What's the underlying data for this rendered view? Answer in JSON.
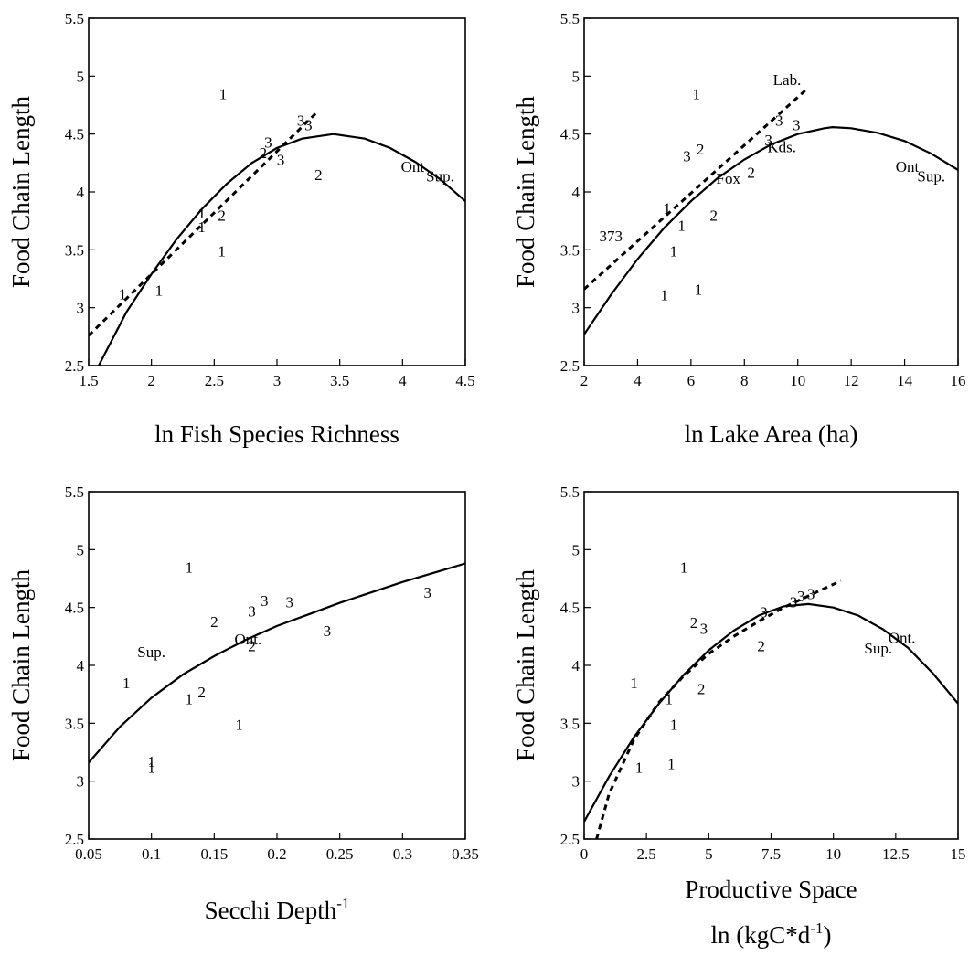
{
  "chart_data": [
    {
      "type": "scatter",
      "xlabel": "ln Fish Species Richness",
      "ylabel": "Food Chain Length",
      "xlim": [
        1.5,
        4.5
      ],
      "ylim": [
        2.5,
        5.5
      ],
      "xticks": [
        "1.5",
        "2",
        "2.5",
        "3",
        "3.5",
        "4",
        "4.5"
      ],
      "yticks": [
        "2.5",
        "3",
        "3.5",
        "4",
        "4.5",
        "5",
        "5.5"
      ],
      "points": [
        {
          "x": 1.77,
          "y": 3.12,
          "label": "1"
        },
        {
          "x": 2.06,
          "y": 3.15,
          "label": "1"
        },
        {
          "x": 2.4,
          "y": 3.82,
          "label": "1"
        },
        {
          "x": 2.4,
          "y": 3.7,
          "label": "1"
        },
        {
          "x": 2.56,
          "y": 3.8,
          "label": "2"
        },
        {
          "x": 2.56,
          "y": 3.49,
          "label": "1"
        },
        {
          "x": 2.57,
          "y": 4.85,
          "label": "1"
        },
        {
          "x": 2.89,
          "y": 4.34,
          "label": "2"
        },
        {
          "x": 2.93,
          "y": 4.43,
          "label": "3"
        },
        {
          "x": 3.03,
          "y": 4.28,
          "label": "3"
        },
        {
          "x": 3.19,
          "y": 4.62,
          "label": "3"
        },
        {
          "x": 3.25,
          "y": 4.58,
          "label": "3"
        },
        {
          "x": 3.33,
          "y": 4.15,
          "label": "2"
        }
      ],
      "lake_labels": [
        {
          "x": 4.08,
          "y": 4.22,
          "text": "Ont"
        },
        {
          "x": 4.3,
          "y": 4.14,
          "text": "Sup."
        }
      ],
      "series": [
        {
          "style": "curve",
          "x": [
            1.58,
            1.8,
            2.0,
            2.2,
            2.4,
            2.6,
            2.8,
            3.0,
            3.2,
            3.45,
            3.7,
            3.9,
            4.1,
            4.3,
            4.5
          ],
          "y": [
            2.5,
            2.96,
            3.29,
            3.59,
            3.85,
            4.07,
            4.25,
            4.38,
            4.46,
            4.5,
            4.46,
            4.38,
            4.26,
            4.11,
            3.92
          ]
        },
        {
          "style": "linear",
          "x": [
            1.5,
            3.33
          ],
          "y": [
            2.76,
            4.7
          ]
        }
      ]
    },
    {
      "type": "scatter",
      "xlabel": "ln Lake Area (ha)",
      "ylabel": "Food Chain Length",
      "xlim": [
        2,
        16
      ],
      "ylim": [
        2.5,
        5.5
      ],
      "xticks": [
        "2",
        "4",
        "6",
        "8",
        "10",
        "12",
        "14",
        "16"
      ],
      "yticks": [
        "2.5",
        "3",
        "3.5",
        "4",
        "4.5",
        "5",
        "5.5"
      ],
      "points": [
        {
          "x": 5.0,
          "y": 3.11,
          "label": "1"
        },
        {
          "x": 6.28,
          "y": 3.16,
          "label": "1"
        },
        {
          "x": 5.35,
          "y": 3.49,
          "label": "1"
        },
        {
          "x": 5.65,
          "y": 3.71,
          "label": "1"
        },
        {
          "x": 5.1,
          "y": 3.86,
          "label": "1"
        },
        {
          "x": 6.85,
          "y": 3.8,
          "label": "2"
        },
        {
          "x": 5.85,
          "y": 4.31,
          "label": "3"
        },
        {
          "x": 6.35,
          "y": 4.37,
          "label": "2"
        },
        {
          "x": 6.2,
          "y": 4.85,
          "label": "1"
        },
        {
          "x": 8.25,
          "y": 4.17,
          "label": "2"
        },
        {
          "x": 8.9,
          "y": 4.45,
          "label": "3"
        },
        {
          "x": 9.3,
          "y": 4.62,
          "label": "3"
        },
        {
          "x": 9.95,
          "y": 4.58,
          "label": "3"
        }
      ],
      "lake_labels": [
        {
          "x": 3.0,
          "y": 3.62,
          "text": "373"
        },
        {
          "x": 7.4,
          "y": 4.12,
          "text": "Fox"
        },
        {
          "x": 9.4,
          "y": 4.39,
          "text": "Kds."
        },
        {
          "x": 9.6,
          "y": 4.97,
          "text": "Lab."
        },
        {
          "x": 14.1,
          "y": 4.22,
          "text": "Ont"
        },
        {
          "x": 15.0,
          "y": 4.14,
          "text": "Sup."
        }
      ],
      "series": [
        {
          "style": "curve",
          "x": [
            2,
            3,
            4,
            5,
            6,
            7,
            8,
            9,
            10,
            11,
            11.3,
            12,
            13,
            14,
            15,
            16
          ],
          "y": [
            2.77,
            3.11,
            3.42,
            3.69,
            3.92,
            4.12,
            4.28,
            4.41,
            4.5,
            4.55,
            4.56,
            4.55,
            4.51,
            4.44,
            4.33,
            4.19
          ]
        },
        {
          "style": "linear",
          "x": [
            2,
            10.3
          ],
          "y": [
            3.16,
            4.88
          ]
        }
      ]
    },
    {
      "type": "scatter",
      "xlabel": "Secchi Depth",
      "xlabel_sup": "-1",
      "ylabel": "Food Chain Length",
      "xlim": [
        0.05,
        0.35
      ],
      "ylim": [
        2.5,
        5.5
      ],
      "xticks": [
        "0.05",
        "0.1",
        "0.15",
        "0.2",
        "0.25",
        "0.3",
        "0.35"
      ],
      "yticks": [
        "2.5",
        "3",
        "3.5",
        "4",
        "4.5",
        "5",
        "5.5"
      ],
      "points": [
        {
          "x": 0.08,
          "y": 3.85,
          "label": "1"
        },
        {
          "x": 0.1,
          "y": 3.17,
          "label": "1"
        },
        {
          "x": 0.1,
          "y": 3.12,
          "label": "1"
        },
        {
          "x": 0.13,
          "y": 3.71,
          "label": "1"
        },
        {
          "x": 0.14,
          "y": 3.77,
          "label": "2"
        },
        {
          "x": 0.13,
          "y": 4.85,
          "label": "1"
        },
        {
          "x": 0.15,
          "y": 4.38,
          "label": "2"
        },
        {
          "x": 0.17,
          "y": 3.49,
          "label": "1"
        },
        {
          "x": 0.18,
          "y": 4.47,
          "label": "3"
        },
        {
          "x": 0.19,
          "y": 4.56,
          "label": "3"
        },
        {
          "x": 0.18,
          "y": 4.17,
          "label": "2"
        },
        {
          "x": 0.21,
          "y": 4.55,
          "label": "3"
        },
        {
          "x": 0.24,
          "y": 4.3,
          "label": "3"
        },
        {
          "x": 0.32,
          "y": 4.63,
          "label": "3"
        }
      ],
      "lake_labels": [
        {
          "x": 0.1,
          "y": 4.12,
          "text": "Sup."
        },
        {
          "x": 0.177,
          "y": 4.23,
          "text": "Ont."
        }
      ],
      "series": [
        {
          "style": "curve",
          "x": [
            0.05,
            0.075,
            0.1,
            0.125,
            0.15,
            0.175,
            0.2,
            0.225,
            0.25,
            0.275,
            0.3,
            0.325,
            0.35
          ],
          "y": [
            3.16,
            3.47,
            3.72,
            3.92,
            4.08,
            4.22,
            4.34,
            4.44,
            4.54,
            4.63,
            4.72,
            4.8,
            4.88
          ]
        }
      ]
    },
    {
      "type": "scatter",
      "xlabel": "Productive Space",
      "xlabel2": "ln (kgC*d",
      "xlabel2_sup": "-1",
      "xlabel2_end": ")",
      "ylabel": "Food Chain Length",
      "xlim": [
        0,
        15
      ],
      "ylim": [
        2.5,
        5.5
      ],
      "xticks": [
        "0",
        "2.5",
        "5",
        "7.5",
        "10",
        "12.5",
        "15"
      ],
      "yticks": [
        "2.5",
        "3",
        "3.5",
        "4",
        "4.5",
        "5",
        "5.5"
      ],
      "points": [
        {
          "x": 2.2,
          "y": 3.12,
          "label": "1"
        },
        {
          "x": 3.5,
          "y": 3.15,
          "label": "1"
        },
        {
          "x": 3.6,
          "y": 3.49,
          "label": "1"
        },
        {
          "x": 3.4,
          "y": 3.71,
          "label": "1"
        },
        {
          "x": 2.0,
          "y": 3.85,
          "label": "1"
        },
        {
          "x": 4.7,
          "y": 3.8,
          "label": "2"
        },
        {
          "x": 4.4,
          "y": 4.37,
          "label": "2"
        },
        {
          "x": 4.8,
          "y": 4.32,
          "label": "3"
        },
        {
          "x": 4.0,
          "y": 4.85,
          "label": "1"
        },
        {
          "x": 7.1,
          "y": 4.17,
          "label": "2"
        },
        {
          "x": 7.2,
          "y": 4.46,
          "label": "3"
        },
        {
          "x": 8.4,
          "y": 4.55,
          "label": "3"
        },
        {
          "x": 8.7,
          "y": 4.6,
          "label": "3"
        },
        {
          "x": 9.1,
          "y": 4.62,
          "label": "3"
        }
      ],
      "lake_labels": [
        {
          "x": 11.8,
          "y": 4.15,
          "text": "Sup."
        },
        {
          "x": 12.75,
          "y": 4.24,
          "text": "Ont."
        }
      ],
      "series": [
        {
          "style": "curve",
          "x": [
            0,
            1,
            2,
            3,
            4,
            5,
            6,
            7,
            8,
            9,
            10,
            11,
            12,
            13,
            14,
            15
          ],
          "y": [
            2.65,
            3.04,
            3.38,
            3.67,
            3.92,
            4.13,
            4.3,
            4.43,
            4.51,
            4.53,
            4.5,
            4.43,
            4.31,
            4.15,
            3.93,
            3.67
          ]
        },
        {
          "style": "linear",
          "x": [
            0.5,
            1,
            2,
            3,
            4,
            5,
            6,
            7,
            8,
            9,
            10.3
          ],
          "y": [
            2.5,
            2.89,
            3.36,
            3.68,
            3.91,
            4.1,
            4.25,
            4.38,
            4.5,
            4.6,
            4.73
          ]
        }
      ]
    }
  ]
}
